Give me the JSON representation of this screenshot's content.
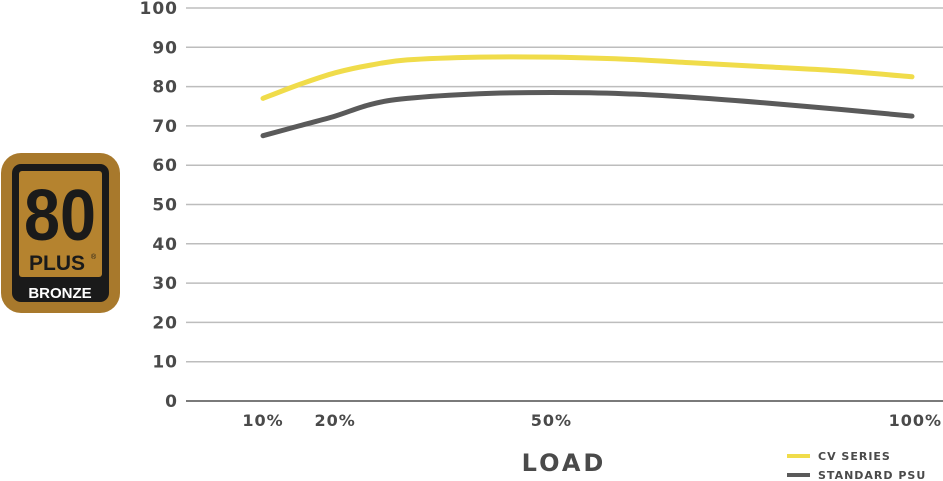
{
  "badge": {
    "number": "80",
    "plus": "PLUS",
    "registered": "®",
    "tier": "BRONZE",
    "colors": {
      "outer": "#a8792c",
      "inner": "#1a1a1a",
      "gold": "#b5832f"
    }
  },
  "chart_data": {
    "type": "line",
    "title": "",
    "xlabel": "LOAD",
    "ylabel": "",
    "ylim": [
      0,
      100
    ],
    "yticks": [
      0,
      10,
      20,
      30,
      40,
      50,
      60,
      70,
      80,
      90,
      100
    ],
    "xticks": [
      {
        "value": 10,
        "label": "10%"
      },
      {
        "value": 20,
        "label": "20%"
      },
      {
        "value": 50,
        "label": "50%"
      },
      {
        "value": 100,
        "label": "100%"
      }
    ],
    "xlim": [
      0,
      100
    ],
    "grid": true,
    "legend_position": "bottom-right",
    "series": [
      {
        "name": "CV SERIES",
        "color": "#f0dc4a",
        "x": [
          10,
          15,
          20,
          25,
          30,
          40,
          50,
          60,
          70,
          80,
          90,
          100
        ],
        "values": [
          77,
          80.5,
          83.5,
          85.5,
          86.8,
          87.5,
          87.5,
          87,
          86,
          85,
          84,
          82.5
        ]
      },
      {
        "name": "STANDARD PSU",
        "color": "#5a5a5a",
        "x": [
          10,
          15,
          20,
          25,
          30,
          40,
          50,
          60,
          70,
          80,
          90,
          100
        ],
        "values": [
          67.5,
          70,
          72.5,
          75.5,
          77,
          78.2,
          78.5,
          78.2,
          77.2,
          75.8,
          74.2,
          72.5
        ]
      }
    ]
  }
}
